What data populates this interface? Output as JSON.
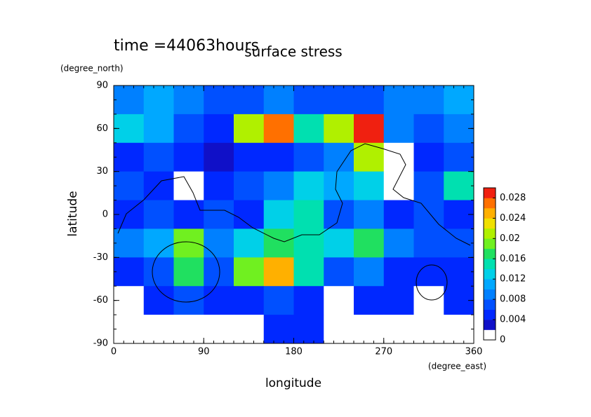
{
  "chart_data": {
    "type": "contour",
    "title": "surface stress",
    "annotation": "time =44063hours",
    "xlabel": "longitude",
    "ylabel": "latitude",
    "xunit": "(degree_east)",
    "yunit": "(degree_north)",
    "x": [
      15,
      45,
      75,
      105,
      135,
      165,
      195,
      225,
      255,
      285,
      315,
      345
    ],
    "y": [
      80,
      60,
      40,
      20,
      0,
      -20,
      -40,
      -60,
      -80
    ],
    "z": [
      [
        0.008,
        0.01,
        0.008,
        0.006,
        0.006,
        0.008,
        0.006,
        0.006,
        0.006,
        0.008,
        0.008,
        0.01
      ],
      [
        0.012,
        0.01,
        0.006,
        0.004,
        0.02,
        0.026,
        0.014,
        0.02,
        0.028,
        0.008,
        0.006,
        0.008
      ],
      [
        0.004,
        0.006,
        0.004,
        0.002,
        0.004,
        0.004,
        0.006,
        0.008,
        0.02,
        0.001,
        0.004,
        0.006
      ],
      [
        0.006,
        0.004,
        0.001,
        0.004,
        0.006,
        0.008,
        0.012,
        0.01,
        0.012,
        0.001,
        0.006,
        0.014
      ],
      [
        0.004,
        0.006,
        0.004,
        0.006,
        0.004,
        0.012,
        0.014,
        0.006,
        0.008,
        0.004,
        0.006,
        0.004
      ],
      [
        0.008,
        0.01,
        0.018,
        0.008,
        0.012,
        0.016,
        0.014,
        0.012,
        0.016,
        0.008,
        0.006,
        0.006
      ],
      [
        0.004,
        0.006,
        0.016,
        0.006,
        0.018,
        0.024,
        0.014,
        0.006,
        0.008,
        0.004,
        0.004,
        0.004
      ],
      [
        0.001,
        0.004,
        0.006,
        0.004,
        0.004,
        0.006,
        0.004,
        0.001,
        0.004,
        0.004,
        0.001,
        0.004
      ],
      [
        0.001,
        0.001,
        0.001,
        0.001,
        0.001,
        0.004,
        0.004,
        0.001,
        0.001,
        0.001,
        0.001,
        0.001
      ]
    ],
    "xlim": [
      0,
      360
    ],
    "xticks": [
      0,
      90,
      180,
      270,
      360
    ],
    "ylim": [
      -90,
      90
    ],
    "yticks": [
      -90,
      -60,
      -30,
      0,
      30,
      60,
      90
    ],
    "clim": [
      0,
      0.03
    ],
    "cticks": [
      0,
      0.004,
      0.008,
      0.012,
      0.016,
      0.02,
      0.024,
      0.028
    ],
    "colors": [
      "#ffffff",
      "#1010c8",
      "#0028ff",
      "#0050ff",
      "#0080ff",
      "#00a8ff",
      "#00d0e8",
      "#00e0b0",
      "#20e060",
      "#70f020",
      "#b0f000",
      "#f0e000",
      "#ffb000",
      "#ff7000",
      "#f02010"
    ]
  }
}
